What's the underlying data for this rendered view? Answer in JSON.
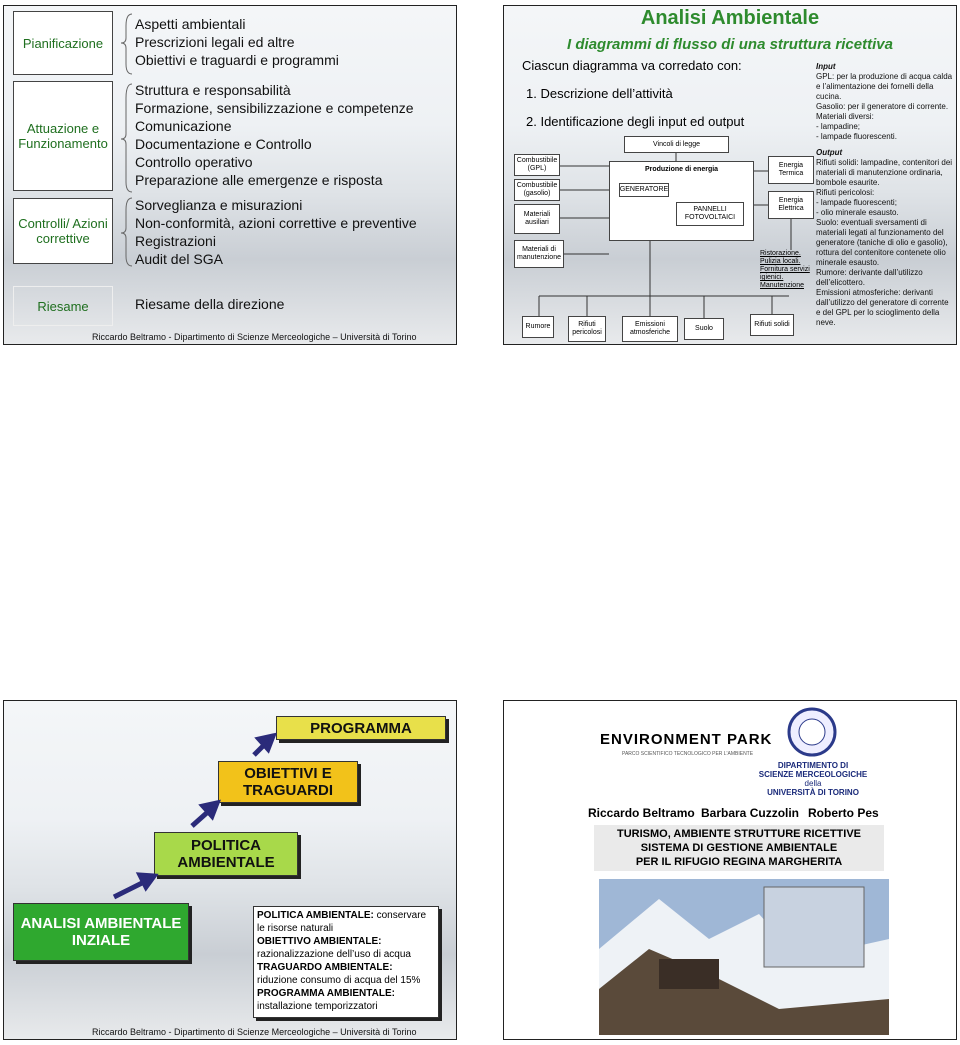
{
  "slide1": {
    "phases": [
      {
        "label": "Pianificazione",
        "items": [
          "Aspetti ambientali",
          "Prescrizioni legali ed altre",
          "Obiettivi e traguardi e programmi"
        ]
      },
      {
        "label": "Attuazione e Funzionamento",
        "items": [
          "Struttura e responsabilità",
          "Formazione, sensibilizzazione e competenze",
          "Comunicazione",
          "Documentazione e Controllo",
          "Controllo operativo",
          "Preparazione alle emergenze e risposta"
        ]
      },
      {
        "label": "Controlli/ Azioni correttive",
        "items": [
          "Sorveglianza e misurazioni",
          "Non-conformità, azioni correttive e preventive",
          "Registrazioni",
          "Audit del SGA"
        ]
      },
      {
        "label": "Riesame",
        "items": [
          "Riesame della direzione"
        ]
      }
    ],
    "footer": "Riccardo Beltramo - Dipartimento di Scienze Merceologiche – Università di Torino"
  },
  "slide2": {
    "title": "Analisi Ambientale",
    "subtitle": "I diagrammi di flusso di una struttura ricettiva",
    "intro": "Ciascun diagramma va corredato con:",
    "steps": [
      "1. Descrizione dell’attività",
      "2. Identificazione degli input ed output"
    ],
    "diagram": {
      "inputs": [
        "Combustibile (GPL)",
        "Combustibile (gasolio)",
        "Materiali ausiliari",
        "Materiali di manutenzione"
      ],
      "constraint": "Vincoli di legge",
      "process": "Produzione di energia",
      "generator": "GENERATORE",
      "panels": "PANNELLI FOTOVOLTAICI",
      "energy": [
        "Energia Termica",
        "Energia Elettrica"
      ],
      "services": "Ristorazione. Pulizia locali. Fornitura servizi igienici. Manutenzione",
      "outputs": [
        "Rumore",
        "Rifiuti pericolosi",
        "Emissioni atmosferiche",
        "Suolo",
        "Rifiuti solidi"
      ]
    },
    "notes": {
      "input_title": "Input",
      "inputs": [
        "GPL: per la produzione di acqua calda e l’alimentazione dei fornelli della cucina.",
        "Gasolio: per il generatore di corrente.",
        "Materiali diversi:",
        "- lampadine;",
        "- lampade fluorescenti."
      ],
      "output_title": "Output",
      "outputs": [
        "Rifiuti solidi: lampadine, contenitori dei materiali di manutenzione ordinaria, bombole esaurite.",
        "Rifiuti pericolosi:",
        "- lampade fluorescenti;",
        "- olio minerale esausto.",
        "Suolo: eventuali sversamenti di materiali legati al funzionamento del generatore (taniche di olio e gasolio), rottura del contenitore contenete olio minerale esausto.",
        "Rumore: derivante dall’utilizzo dell’elicottero.",
        "Emissioni atmosferiche: derivanti dall’utilizzo del generatore di corrente e del GPL per lo scioglimento della neve."
      ]
    }
  },
  "slide3": {
    "steps": [
      "PROGRAMMA",
      "OBIETTIVI E TRAGUARDI",
      "POLITICA AMBIENTALE",
      "ANALISI AMBIENTALE INZIALE"
    ],
    "definitions": [
      {
        "term": "POLITICA AMBIENTALE:",
        "text": "conservare le risorse naturali"
      },
      {
        "term": "OBIETTIVO AMBIENTALE:",
        "text": "razionalizzazione dell’uso di acqua"
      },
      {
        "term": "TRAGUARDO AMBIENTALE:",
        "text": "riduzione consumo di acqua del 15%"
      },
      {
        "term": "PROGRAMMA AMBIENTALE:",
        "text": "installazione temporizzatori"
      }
    ],
    "footer": "Riccardo Beltramo - Dipartimento di Scienze Merceologiche – Università di Torino"
  },
  "slide4": {
    "logo_left": "ENVIRONMENT PARK",
    "logo_left_sub": "PARCO SCIENTIFICO TECNOLOGICO PER L'AMBIENTE",
    "logo_right": [
      "DIPARTIMENTO DI",
      "SCIENZE MERCEOLOGICHE",
      "della",
      "UNIVERSITÀ DI TORINO"
    ],
    "authors": [
      "Riccardo Beltramo",
      "Barbara Cuzzolin",
      "Roberto Pes"
    ],
    "title": [
      "TURISMO, AMBIENTE STRUTTURE RICETTIVE",
      "SISTEMA DI GESTIONE AMBIENTALE",
      "PER IL RIFUGIO REGINA MARGHERITA"
    ]
  }
}
